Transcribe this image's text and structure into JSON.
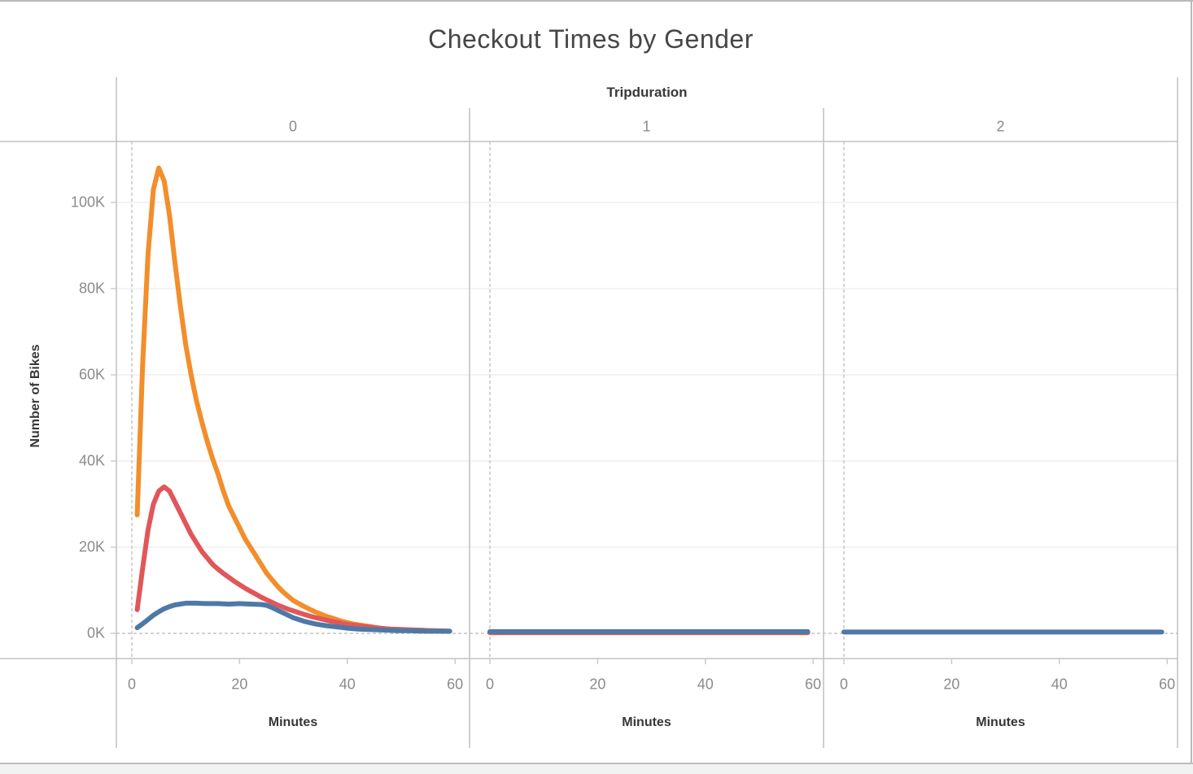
{
  "title": "Checkout Times by Gender",
  "facet": {
    "field_label": "Tripduration",
    "columns": [
      "0",
      "1",
      "2"
    ]
  },
  "axes": {
    "y_label": "Number of Bikes",
    "y_ticks": [
      "0K",
      "20K",
      "40K",
      "60K",
      "80K",
      "100K"
    ],
    "x_label": "Minutes",
    "x_ticks": [
      "0",
      "20",
      "40",
      "60"
    ]
  },
  "colors": {
    "orange": "#f28e2b",
    "red": "#e15759",
    "blue": "#4e79a7",
    "grid": "#ececec",
    "dashed": "#b8b8b8",
    "border": "#c3c3c3",
    "tick": "#c9c9c9"
  },
  "chart_data": {
    "type": "line",
    "title": "Checkout Times by Gender",
    "facet_field": "Tripduration",
    "xlabel": "Minutes",
    "ylabel": "Number of Bikes",
    "xlim": [
      0,
      60
    ],
    "ylim_K": [
      0,
      114
    ],
    "y_tick_values_K": [
      0,
      20,
      40,
      60,
      80,
      100
    ],
    "x_tick_values": [
      0,
      20,
      40,
      60
    ],
    "grid": "horizontal-only",
    "legend": "none",
    "units": "thousands of bikes (K)",
    "facets": [
      {
        "label": "0",
        "series": [
          {
            "id": "orange",
            "color": "#f28e2b",
            "x_start": 1,
            "values_K": [
              27.5,
              62,
              88,
              103,
              108,
              105,
              97,
              86,
              76,
              67,
              60,
              54,
              49,
              44.5,
              40.5,
              37,
              33,
              29.5,
              27,
              24.5,
              22,
              20,
              18,
              16,
              14,
              12.5,
              11,
              9.7,
              8.6,
              7.6,
              6.9,
              6.2,
              5.6,
              5.0,
              4.5,
              4.0,
              3.6,
              3.2,
              2.8,
              2.5,
              2.2,
              2.0,
              1.8,
              1.6,
              1.4,
              1.2,
              1.05,
              0.95,
              0.85,
              0.8,
              0.75,
              0.7,
              0.65,
              0.6,
              0.58,
              0.55,
              0.52,
              0.5,
              0.5
            ]
          },
          {
            "id": "red",
            "color": "#e15759",
            "x_start": 1,
            "values_K": [
              5.5,
              15,
              24,
              30,
              33,
              34,
              33,
              30.5,
              28,
              25.5,
              23,
              21,
              19,
              17.5,
              16,
              14.9,
              13.9,
              13,
              12.1,
              11.3,
              10.5,
              9.8,
              9.1,
              8.4,
              7.8,
              7.2,
              6.6,
              6.1,
              5.6,
              5.2,
              4.8,
              4.4,
              4.0,
              3.7,
              3.4,
              3.1,
              2.8,
              2.6,
              2.3,
              2.1,
              1.9,
              1.8,
              1.6,
              1.5,
              1.35,
              1.2,
              1.1,
              1.0,
              0.95,
              0.9,
              0.85,
              0.8,
              0.75,
              0.7,
              0.65,
              0.6,
              0.58,
              0.55,
              0.5
            ]
          },
          {
            "id": "blue",
            "color": "#4e79a7",
            "x_start": 1,
            "values_K": [
              1.3,
              2.2,
              3.2,
              4.2,
              5.0,
              5.7,
              6.2,
              6.6,
              6.8,
              7.0,
              7.0,
              7.0,
              6.95,
              6.9,
              6.9,
              6.9,
              6.85,
              6.8,
              6.85,
              6.9,
              6.85,
              6.8,
              6.75,
              6.7,
              6.5,
              6.0,
              5.4,
              4.8,
              4.2,
              3.6,
              3.2,
              2.8,
              2.5,
              2.2,
              2.0,
              1.8,
              1.65,
              1.5,
              1.35,
              1.2,
              1.1,
              1.0,
              0.95,
              0.9,
              0.85,
              0.8,
              0.75,
              0.7,
              0.65,
              0.6,
              0.6,
              0.58,
              0.55,
              0.52,
              0.5,
              0.5,
              0.5,
              0.5,
              0.5
            ]
          }
        ]
      },
      {
        "label": "1",
        "series": [
          {
            "id": "orange",
            "color": "#f28e2b",
            "x_start": 0,
            "x_end": 59,
            "flat_K": 0.15
          },
          {
            "id": "red",
            "color": "#e15759",
            "x_start": 0,
            "x_end": 59,
            "flat_K": 0.2
          },
          {
            "id": "blue",
            "color": "#4e79a7",
            "x_start": 0,
            "x_end": 59,
            "flat_K": 0.4
          }
        ]
      },
      {
        "label": "2",
        "series": [
          {
            "id": "blue",
            "color": "#4e79a7",
            "x_start": 0,
            "x_end": 59,
            "flat_K": 0.3
          }
        ]
      }
    ]
  }
}
